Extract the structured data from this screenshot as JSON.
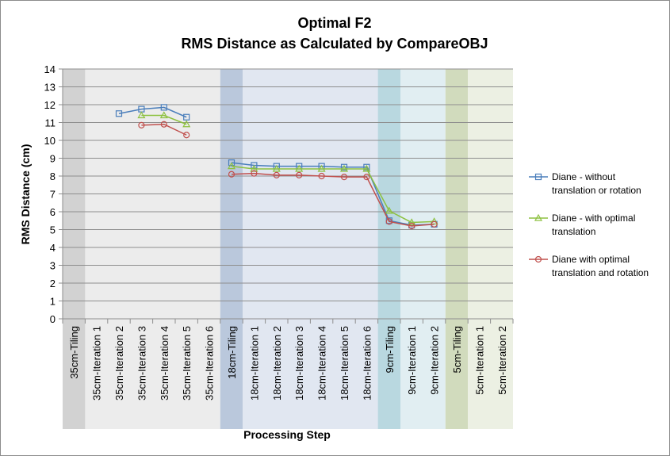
{
  "chart_data": {
    "type": "line",
    "title": [
      "Optimal F2",
      "RMS Distance as Calculated by CompareOBJ"
    ],
    "xlabel": "Processing Step",
    "ylabel": "RMS Distance (cm)",
    "ylim": [
      0,
      14
    ],
    "ystep": 1,
    "grid": true,
    "legend_position": "right",
    "categories": [
      "35cm-Tiling",
      "35cm-Iteration 1",
      "35cm-Iteration 2",
      "35cm-Iteration 3",
      "35cm-Iteration 4",
      "35cm-Iteration 5",
      "35cm-Iteration 6",
      "18cm-Tiling",
      "18cm-Iteration 1",
      "18cm-Iteration 2",
      "18cm-Iteration 3",
      "18cm-Iteration 4",
      "18cm-Iteration 5",
      "18cm-Iteration 6",
      "9cm-Tiling",
      "9cm-Iteration 1",
      "9cm-Iteration 2",
      "5cm-Tiling",
      "5cm-Iteration 1",
      "5cm-Iteration 2"
    ],
    "bands": [
      {
        "start": 0,
        "end": 7,
        "tiling_color": "#d2d2d2",
        "iter_color": "#ececec"
      },
      {
        "start": 7,
        "end": 14,
        "tiling_color": "#bac8dc",
        "iter_color": "#e1e7f1"
      },
      {
        "start": 14,
        "end": 17,
        "tiling_color": "#b9d8e0",
        "iter_color": "#e1eef2"
      },
      {
        "start": 17,
        "end": 20,
        "tiling_color": "#d1dbbd",
        "iter_color": "#ecf0e3"
      }
    ],
    "series": [
      {
        "name": "Diane - without translation or rotation",
        "legend_lines": [
          "Diane - without",
          "translation or rotation"
        ],
        "color": "#4a7ebb",
        "marker": "square",
        "values": [
          null,
          null,
          11.5,
          11.75,
          11.85,
          11.3,
          null,
          8.75,
          8.6,
          8.55,
          8.55,
          8.55,
          8.5,
          8.5,
          5.5,
          5.25,
          5.3,
          null,
          null,
          null
        ]
      },
      {
        "name": "Diane - with optimal translation",
        "legend_lines": [
          "Diane - with optimal",
          "translation"
        ],
        "color": "#8dc140",
        "marker": "triangle",
        "values": [
          null,
          null,
          null,
          11.4,
          11.4,
          10.9,
          null,
          8.55,
          8.4,
          8.4,
          8.4,
          8.4,
          8.4,
          8.4,
          6.05,
          5.4,
          5.45,
          null,
          null,
          null
        ]
      },
      {
        "name": "Diane with optimal translation and rotation",
        "legend_lines": [
          "Diane with optimal",
          "translation and rotation"
        ],
        "color": "#c0504d",
        "marker": "circle",
        "values": [
          null,
          null,
          null,
          10.85,
          10.9,
          10.3,
          null,
          8.1,
          8.15,
          8.05,
          8.05,
          8.0,
          7.95,
          7.95,
          5.45,
          5.2,
          5.3,
          null,
          null,
          null
        ]
      }
    ]
  }
}
